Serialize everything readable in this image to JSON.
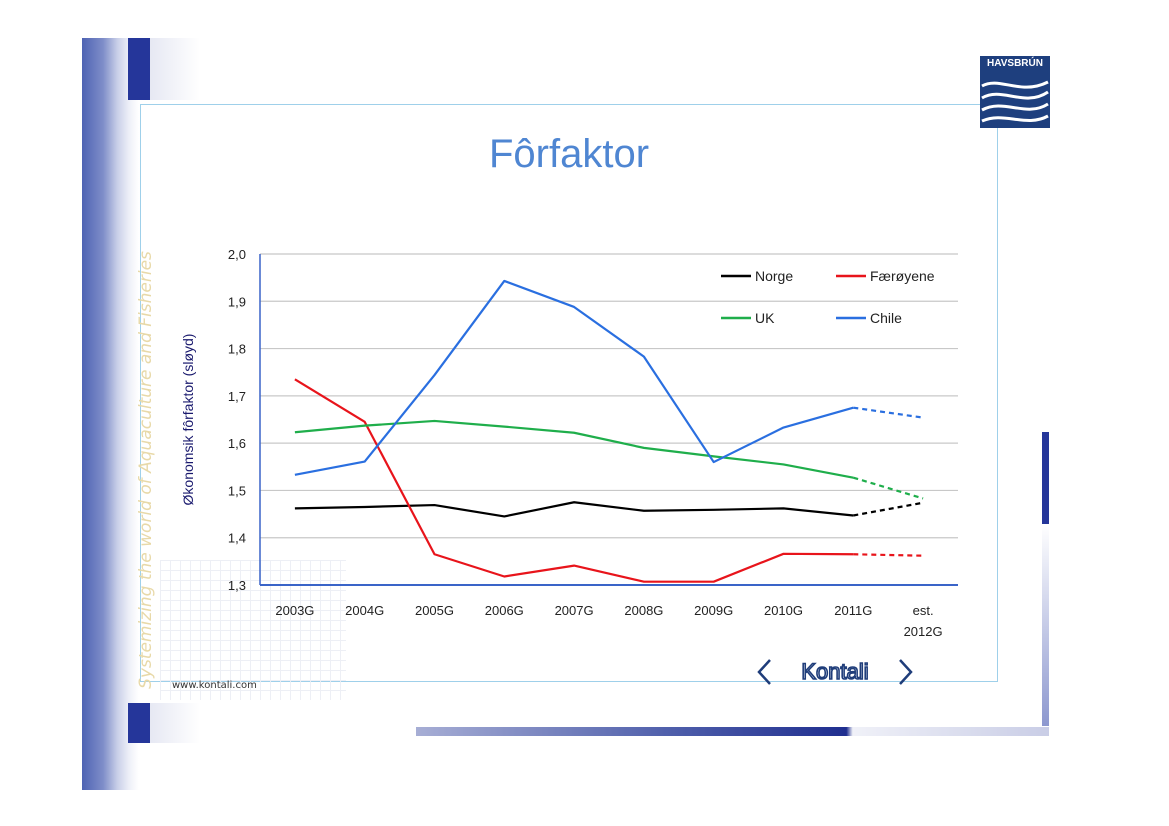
{
  "slide": {
    "title": "Fôrfaktor",
    "vertical_text": "Systemizing the world of Aquaculture and Fisheries",
    "url": "www.kontali.com",
    "logo_havsbrun": "HAVSBRÚN",
    "logo_kontali": "Kontali"
  },
  "chart_data": {
    "type": "line",
    "ylabel": "Økonomsik fôrfaktor (sløyd)",
    "xlabel": "",
    "ylim": [
      1.3,
      2.0
    ],
    "yticks": [
      "1,3",
      "1,4",
      "1,5",
      "1,6",
      "1,7",
      "1,8",
      "1,9",
      "2,0"
    ],
    "categories": [
      "2003G",
      "2004G",
      "2005G",
      "2006G",
      "2007G",
      "2008G",
      "2009G",
      "2010G",
      "2011G",
      "est. 2012G"
    ],
    "grid": true,
    "legend_placement": "top-right",
    "series": [
      {
        "name": "Norge",
        "color": "#000000",
        "values": [
          1.462,
          1.465,
          1.469,
          1.445,
          1.475,
          1.457,
          1.459,
          1.462,
          1.447,
          1.474
        ]
      },
      {
        "name": "Færøyene",
        "color": "#e8141b",
        "values": [
          1.735,
          1.645,
          1.365,
          1.318,
          1.341,
          1.307,
          1.307,
          1.366,
          1.365,
          1.362
        ]
      },
      {
        "name": "UK",
        "color": "#1fae4b",
        "values": [
          1.623,
          1.637,
          1.647,
          1.635,
          1.622,
          1.59,
          1.572,
          1.555,
          1.527,
          1.483
        ]
      },
      {
        "name": "Chile",
        "color": "#2a6fe0",
        "values": [
          1.533,
          1.561,
          1.744,
          1.943,
          1.888,
          1.783,
          1.56,
          1.633,
          1.675,
          1.654
        ]
      }
    ],
    "estimate_from_index": 8
  }
}
